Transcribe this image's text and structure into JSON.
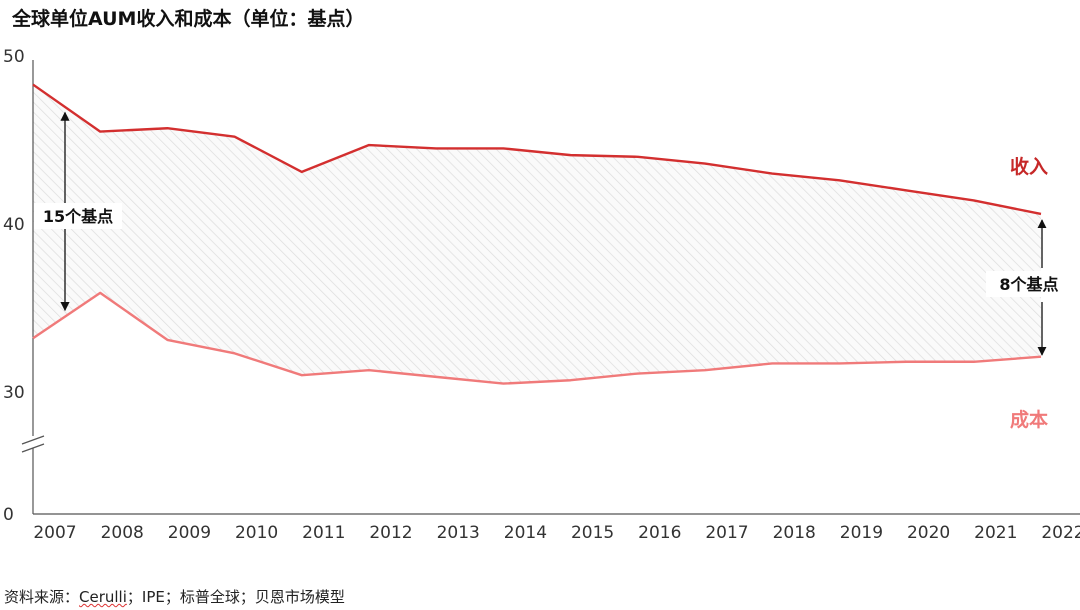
{
  "title": "全球单位AUM收入和成本（单位：基点）",
  "source": {
    "prefix": "资料来源：",
    "underlined": "Cerulli",
    "rest": "；IPE；标普全球；贝恩市场模型"
  },
  "chart_data": {
    "type": "line",
    "title": "全球单位AUM收入和成本（单位：基点）",
    "xlabel": "",
    "ylabel": "",
    "categories": [
      "2007",
      "2008",
      "2009",
      "2010",
      "2011",
      "2012",
      "2013",
      "2014",
      "2015",
      "2016",
      "2017",
      "2018",
      "2019",
      "2020",
      "2021",
      "2022"
    ],
    "y_ticks": [
      "50",
      "40",
      "30",
      "0"
    ],
    "axis_break": true,
    "series": [
      {
        "name": "收入",
        "color": "#d32f2f",
        "values": [
          48.3,
          45.5,
          45.7,
          45.2,
          43.1,
          44.7,
          44.5,
          44.5,
          44.1,
          44.0,
          43.6,
          43.0,
          42.6,
          42.0,
          41.4,
          40.6
        ]
      },
      {
        "name": "成本",
        "color": "#f07a7a",
        "values": [
          33.2,
          35.9,
          33.1,
          32.3,
          31.0,
          31.3,
          30.9,
          30.5,
          30.7,
          31.1,
          31.3,
          31.7,
          31.7,
          31.8,
          31.8,
          32.1
        ]
      }
    ],
    "annotations": [
      {
        "label": "15个基点",
        "year": "2007"
      },
      {
        "label": "8个基点",
        "year": "2022"
      }
    ],
    "legend": [
      {
        "label": "收入",
        "color": "#c62828",
        "position": "right"
      },
      {
        "label": "成本",
        "color": "#f07a7a",
        "position": "right"
      }
    ]
  }
}
